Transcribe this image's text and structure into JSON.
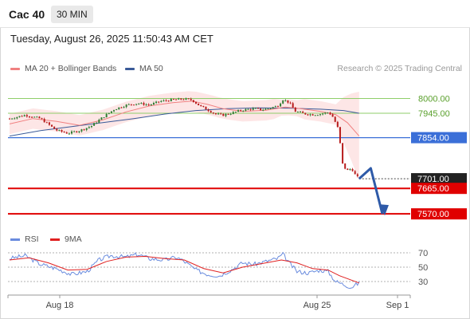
{
  "header": {
    "instrument": "Cac 40",
    "timeframe": "30 MIN",
    "datetime": "Tuesday, August 26, 2025 11:50:43 AM CET"
  },
  "legend": {
    "ma20": "MA 20 + Bollinger Bands",
    "ma50": "MA 50",
    "credit": "Research © 2025 Trading Central"
  },
  "rsi_legend": {
    "rsi": "RSI",
    "ma": "9MA"
  },
  "colors": {
    "up": "#2e7d32",
    "down": "#b71c1c",
    "ma20": "#f08080",
    "ma50": "#3a5a98",
    "band_fill": "#fde2e2",
    "resistance": "#8fce6a",
    "pivot": "#3b6fd8",
    "support": "#e00000",
    "rsi": "#6a8cde",
    "rsi_ma": "#e02020",
    "arrow": "#2e5aa8"
  },
  "chart_data": [
    {
      "type": "candlestick",
      "x_ticks": [
        "Aug 18",
        "Aug 25",
        "Sep 1"
      ],
      "ylim": [
        7520,
        8040
      ],
      "levels": [
        {
          "label": "8000.00",
          "value": 8000,
          "kind": "resistance"
        },
        {
          "label": "7945.00",
          "value": 7945,
          "kind": "resistance"
        },
        {
          "label": "7854.00",
          "value": 7854,
          "kind": "pivot"
        },
        {
          "label": "7701.00",
          "value": 7701,
          "kind": "last"
        },
        {
          "label": "7665.00",
          "value": 7665,
          "kind": "support"
        },
        {
          "label": "7570.00",
          "value": 7570,
          "kind": "support"
        }
      ],
      "price_path": [
        [
          0,
          7925
        ],
        [
          20,
          7938
        ],
        [
          40,
          7925
        ],
        [
          60,
          7882
        ],
        [
          75,
          7870
        ],
        [
          90,
          7880
        ],
        [
          105,
          7897
        ],
        [
          120,
          7930
        ],
        [
          135,
          7960
        ],
        [
          150,
          7975
        ],
        [
          165,
          7982
        ],
        [
          180,
          7976
        ],
        [
          195,
          7990
        ],
        [
          210,
          7995
        ],
        [
          225,
          7998
        ],
        [
          235,
          7994
        ],
        [
          245,
          7972
        ],
        [
          255,
          7958
        ],
        [
          265,
          7942
        ],
        [
          275,
          7938
        ],
        [
          285,
          7945
        ],
        [
          300,
          7957
        ],
        [
          315,
          7962
        ],
        [
          325,
          7958
        ],
        [
          335,
          7964
        ],
        [
          345,
          7972
        ],
        [
          352,
          7996
        ],
        [
          360,
          7985
        ],
        [
          368,
          7952
        ],
        [
          380,
          7943
        ],
        [
          390,
          7940
        ],
        [
          400,
          7942
        ],
        [
          410,
          7948
        ],
        [
          415,
          7938
        ],
        [
          420,
          7908
        ],
        [
          424,
          7880
        ],
        [
          428,
          7760
        ],
        [
          432,
          7740
        ],
        [
          436,
          7730
        ],
        [
          440,
          7742
        ],
        [
          445,
          7715
        ],
        [
          450,
          7701
        ]
      ],
      "projection": [
        [
          450,
          7701
        ],
        [
          465,
          7740
        ],
        [
          480,
          7570
        ]
      ],
      "ma20": [
        [
          0,
          7905
        ],
        [
          30,
          7925
        ],
        [
          60,
          7915
        ],
        [
          90,
          7900
        ],
        [
          120,
          7920
        ],
        [
          150,
          7950
        ],
        [
          180,
          7972
        ],
        [
          210,
          7984
        ],
        [
          235,
          7990
        ],
        [
          255,
          7978
        ],
        [
          275,
          7962
        ],
        [
          300,
          7952
        ],
        [
          330,
          7956
        ],
        [
          355,
          7968
        ],
        [
          375,
          7962
        ],
        [
          400,
          7952
        ],
        [
          420,
          7940
        ],
        [
          435,
          7910
        ],
        [
          450,
          7860
        ]
      ],
      "ma50": [
        [
          0,
          7860
        ],
        [
          40,
          7880
        ],
        [
          80,
          7895
        ],
        [
          120,
          7910
        ],
        [
          160,
          7925
        ],
        [
          200,
          7942
        ],
        [
          240,
          7955
        ],
        [
          280,
          7962
        ],
        [
          320,
          7965
        ],
        [
          360,
          7964
        ],
        [
          400,
          7960
        ],
        [
          430,
          7955
        ],
        [
          450,
          7945
        ]
      ]
    },
    {
      "type": "line",
      "name": "RSI",
      "ylim": [
        20,
        80
      ],
      "y_ticks": [
        70,
        50,
        30
      ],
      "rsi": [
        [
          0,
          62
        ],
        [
          20,
          66
        ],
        [
          40,
          54
        ],
        [
          60,
          48
        ],
        [
          80,
          40
        ],
        [
          100,
          44
        ],
        [
          115,
          60
        ],
        [
          130,
          66
        ],
        [
          150,
          64
        ],
        [
          165,
          68
        ],
        [
          180,
          62
        ],
        [
          200,
          60
        ],
        [
          215,
          64
        ],
        [
          225,
          58
        ],
        [
          240,
          46
        ],
        [
          255,
          40
        ],
        [
          270,
          38
        ],
        [
          285,
          46
        ],
        [
          300,
          56
        ],
        [
          315,
          54
        ],
        [
          330,
          58
        ],
        [
          345,
          62
        ],
        [
          352,
          68
        ],
        [
          360,
          56
        ],
        [
          370,
          44
        ],
        [
          385,
          42
        ],
        [
          400,
          46
        ],
        [
          410,
          44
        ],
        [
          420,
          30
        ],
        [
          430,
          26
        ],
        [
          440,
          22
        ],
        [
          450,
          28
        ]
      ],
      "rsi_ma": [
        [
          0,
          60
        ],
        [
          25,
          63
        ],
        [
          50,
          56
        ],
        [
          75,
          46
        ],
        [
          100,
          47
        ],
        [
          125,
          58
        ],
        [
          150,
          64
        ],
        [
          175,
          65
        ],
        [
          200,
          62
        ],
        [
          225,
          60
        ],
        [
          250,
          48
        ],
        [
          275,
          42
        ],
        [
          300,
          50
        ],
        [
          325,
          55
        ],
        [
          350,
          60
        ],
        [
          370,
          56
        ],
        [
          390,
          48
        ],
        [
          410,
          46
        ],
        [
          425,
          38
        ],
        [
          440,
          32
        ],
        [
          450,
          28
        ]
      ]
    }
  ]
}
